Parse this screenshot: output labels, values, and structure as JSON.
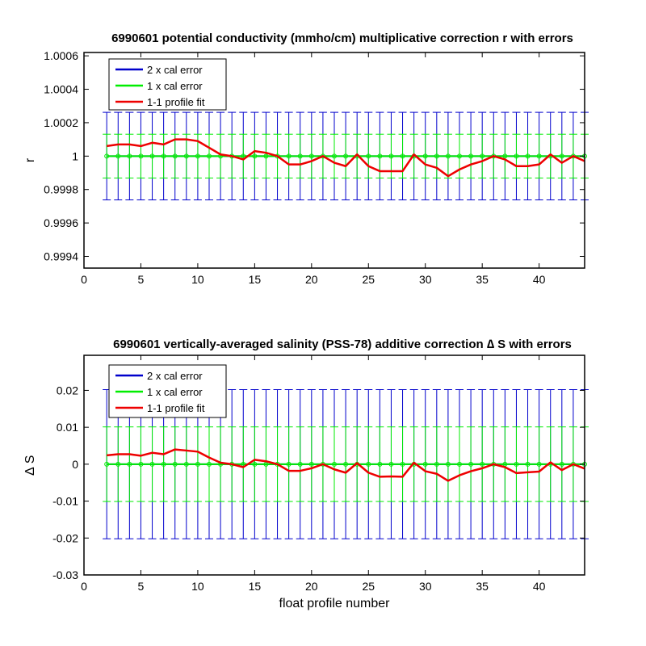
{
  "chart_data": [
    {
      "type": "line",
      "title": "6990601 potential conductivity (mmho/cm) multiplicative correction r with errors",
      "xlabel": "",
      "ylabel": "r",
      "xlim": [
        0,
        44
      ],
      "ylim": [
        0.99933,
        1.00062
      ],
      "x_ticks": [
        "0",
        "5",
        "10",
        "15",
        "20",
        "25",
        "30",
        "35",
        "40"
      ],
      "y_ticks": [
        "0.9994",
        "0.9996",
        "0.9998",
        "1",
        "1.0002",
        "1.0004",
        "1.0006"
      ],
      "legend_position": "top-left",
      "grid": false,
      "center_value": 1.0,
      "error_2x": 0.000262,
      "error_1x": 0.000131,
      "profiles": [
        2,
        3,
        4,
        5,
        6,
        7,
        8,
        9,
        10,
        11,
        12,
        13,
        14,
        15,
        16,
        17,
        18,
        19,
        20,
        21,
        22,
        23,
        24,
        25,
        26,
        27,
        28,
        29,
        30,
        31,
        32,
        33,
        34,
        35,
        36,
        37,
        38,
        39,
        40,
        41,
        42,
        43,
        44
      ],
      "series": [
        {
          "name": "2 x cal error",
          "color": "#0000cc"
        },
        {
          "name": "1 x cal error",
          "color": "#00ee00"
        },
        {
          "name": "1-1 profile fit",
          "color": "#ee0000",
          "values": [
            1.00006,
            1.00007,
            1.00007,
            1.00006,
            1.00008,
            1.00007,
            1.0001,
            1.0001,
            1.00009,
            1.00005,
            1.00001,
            1.0,
            0.99998,
            1.00003,
            1.00002,
            1.0,
            0.99995,
            0.99995,
            0.99997,
            1.0,
            0.99996,
            0.99994,
            1.00001,
            0.99994,
            0.99991,
            0.99991,
            0.99991,
            1.00001,
            0.99995,
            0.99993,
            0.99988,
            0.99992,
            0.99995,
            0.99997,
            1.0,
            0.99998,
            0.99994,
            0.99994,
            0.99995,
            1.00001,
            0.99996,
            1.0,
            0.99997
          ]
        }
      ]
    },
    {
      "type": "line",
      "title": "6990601 vertically-averaged salinity (PSS-78) additive correction ∆ S with errors",
      "xlabel": "float profile number",
      "ylabel": "∆ S",
      "xlim": [
        0,
        44
      ],
      "ylim": [
        -0.03,
        0.0295
      ],
      "x_ticks": [
        "0",
        "5",
        "10",
        "15",
        "20",
        "25",
        "30",
        "35",
        "40"
      ],
      "y_ticks": [
        "-0.03",
        "-0.02",
        "-0.01",
        "0",
        "0.01",
        "0.02"
      ],
      "legend_position": "top-left",
      "grid": false,
      "center_value": 0.0,
      "error_2x": 0.0202,
      "error_1x": 0.0101,
      "profiles": [
        2,
        3,
        4,
        5,
        6,
        7,
        8,
        9,
        10,
        11,
        12,
        13,
        14,
        15,
        16,
        17,
        18,
        19,
        20,
        21,
        22,
        23,
        24,
        25,
        26,
        27,
        28,
        29,
        30,
        31,
        32,
        33,
        34,
        35,
        36,
        37,
        38,
        39,
        40,
        41,
        42,
        43,
        44
      ],
      "series": [
        {
          "name": "2 x cal error",
          "color": "#0000cc"
        },
        {
          "name": "1 x cal error",
          "color": "#00ee00"
        },
        {
          "name": "1-1 profile fit",
          "color": "#ee0000",
          "values": [
            0.0024,
            0.0027,
            0.0027,
            0.0023,
            0.0031,
            0.0027,
            0.004,
            0.0037,
            0.0034,
            0.0018,
            0.0004,
            0.0,
            -0.0008,
            0.0012,
            0.0008,
            0.0,
            -0.0018,
            -0.0018,
            -0.0011,
            0.0,
            -0.0014,
            -0.0023,
            0.0003,
            -0.0023,
            -0.0034,
            -0.0033,
            -0.0034,
            0.0004,
            -0.0019,
            -0.0026,
            -0.0045,
            -0.003,
            -0.0019,
            -0.0011,
            0.0,
            -0.0008,
            -0.0024,
            -0.0022,
            -0.002,
            0.0005,
            -0.0016,
            0.0,
            -0.0012
          ]
        }
      ]
    }
  ]
}
